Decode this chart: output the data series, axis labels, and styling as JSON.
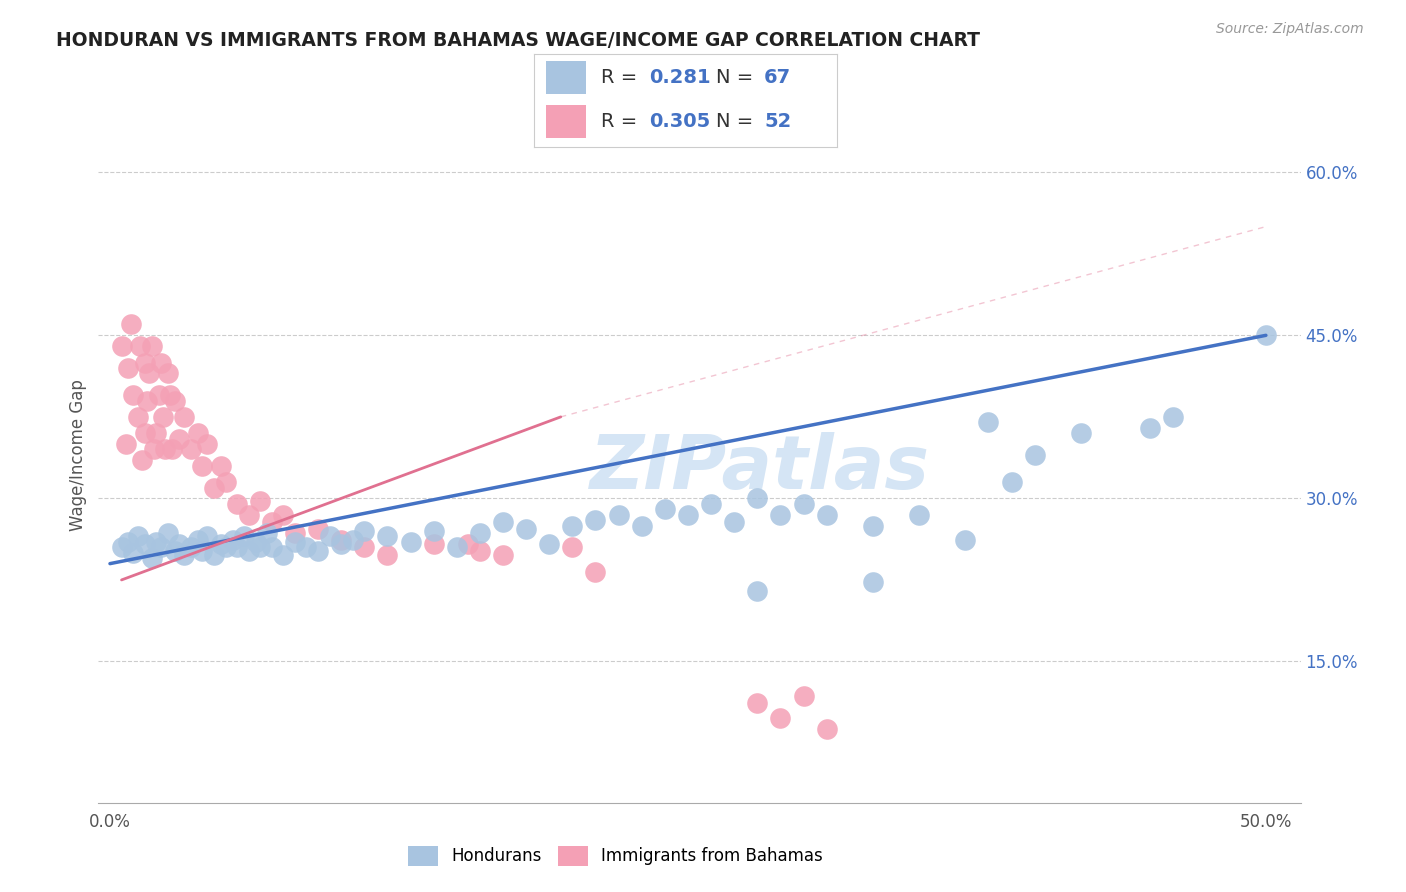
{
  "title": "HONDURAN VS IMMIGRANTS FROM BAHAMAS WAGE/INCOME GAP CORRELATION CHART",
  "source_text": "Source: ZipAtlas.com",
  "ylabel": "Wage/Income Gap",
  "xlim": [
    -0.005,
    0.515
  ],
  "ylim": [
    0.02,
    0.66
  ],
  "x_ticks": [
    0.0,
    0.5
  ],
  "x_tick_labels": [
    "0.0%",
    "50.0%"
  ],
  "y_ticks_right": [
    0.15,
    0.3,
    0.45,
    0.6
  ],
  "y_tick_labels_right": [
    "15.0%",
    "30.0%",
    "45.0%",
    "60.0%"
  ],
  "blue_fill": "#a8c4e0",
  "pink_fill": "#f4a0b5",
  "blue_line": "#4472c4",
  "pink_line": "#e07090",
  "watermark_color": "#d5e5f5",
  "R_blue": "0.281",
  "N_blue": "67",
  "R_pink": "0.305",
  "N_pink": "52",
  "blue_x": [
    0.005,
    0.008,
    0.01,
    0.012,
    0.015,
    0.018,
    0.02,
    0.022,
    0.025,
    0.028,
    0.03,
    0.032,
    0.035,
    0.038,
    0.04,
    0.042,
    0.045,
    0.048,
    0.05,
    0.053,
    0.055,
    0.058,
    0.06,
    0.063,
    0.065,
    0.068,
    0.07,
    0.075,
    0.08,
    0.085,
    0.09,
    0.095,
    0.1,
    0.105,
    0.11,
    0.12,
    0.13,
    0.14,
    0.15,
    0.16,
    0.17,
    0.18,
    0.19,
    0.2,
    0.21,
    0.22,
    0.23,
    0.24,
    0.25,
    0.26,
    0.27,
    0.28,
    0.29,
    0.3,
    0.31,
    0.33,
    0.35,
    0.37,
    0.39,
    0.4,
    0.42,
    0.45,
    0.46,
    0.33,
    0.28,
    0.38,
    0.5
  ],
  "blue_y": [
    0.255,
    0.26,
    0.25,
    0.265,
    0.258,
    0.245,
    0.26,
    0.255,
    0.268,
    0.252,
    0.258,
    0.248,
    0.255,
    0.262,
    0.252,
    0.265,
    0.248,
    0.258,
    0.255,
    0.262,
    0.255,
    0.265,
    0.252,
    0.26,
    0.255,
    0.268,
    0.255,
    0.248,
    0.26,
    0.255,
    0.252,
    0.265,
    0.258,
    0.262,
    0.27,
    0.265,
    0.26,
    0.27,
    0.255,
    0.268,
    0.278,
    0.272,
    0.258,
    0.275,
    0.28,
    0.285,
    0.275,
    0.29,
    0.285,
    0.295,
    0.278,
    0.3,
    0.285,
    0.295,
    0.285,
    0.275,
    0.285,
    0.262,
    0.315,
    0.34,
    0.36,
    0.365,
    0.375,
    0.223,
    0.215,
    0.37,
    0.45
  ],
  "pink_x": [
    0.005,
    0.007,
    0.008,
    0.009,
    0.01,
    0.012,
    0.013,
    0.014,
    0.015,
    0.015,
    0.016,
    0.017,
    0.018,
    0.019,
    0.02,
    0.021,
    0.022,
    0.023,
    0.024,
    0.025,
    0.026,
    0.027,
    0.028,
    0.03,
    0.032,
    0.035,
    0.038,
    0.04,
    0.042,
    0.045,
    0.048,
    0.05,
    0.055,
    0.06,
    0.065,
    0.07,
    0.075,
    0.08,
    0.09,
    0.1,
    0.11,
    0.12,
    0.14,
    0.155,
    0.16,
    0.17,
    0.2,
    0.21,
    0.28,
    0.29,
    0.3,
    0.31
  ],
  "pink_y": [
    0.44,
    0.35,
    0.42,
    0.46,
    0.395,
    0.375,
    0.44,
    0.335,
    0.36,
    0.425,
    0.39,
    0.415,
    0.44,
    0.345,
    0.36,
    0.395,
    0.425,
    0.375,
    0.345,
    0.415,
    0.395,
    0.345,
    0.39,
    0.355,
    0.375,
    0.345,
    0.36,
    0.33,
    0.35,
    0.31,
    0.33,
    0.315,
    0.295,
    0.285,
    0.298,
    0.278,
    0.285,
    0.268,
    0.272,
    0.262,
    0.255,
    0.248,
    0.258,
    0.258,
    0.252,
    0.248,
    0.255,
    0.232,
    0.112,
    0.098,
    0.118,
    0.088
  ],
  "blue_trend_x": [
    0.0,
    0.5
  ],
  "blue_trend_y": [
    0.24,
    0.45
  ],
  "pink_trend_x": [
    0.005,
    0.195
  ],
  "pink_trend_y": [
    0.225,
    0.375
  ]
}
